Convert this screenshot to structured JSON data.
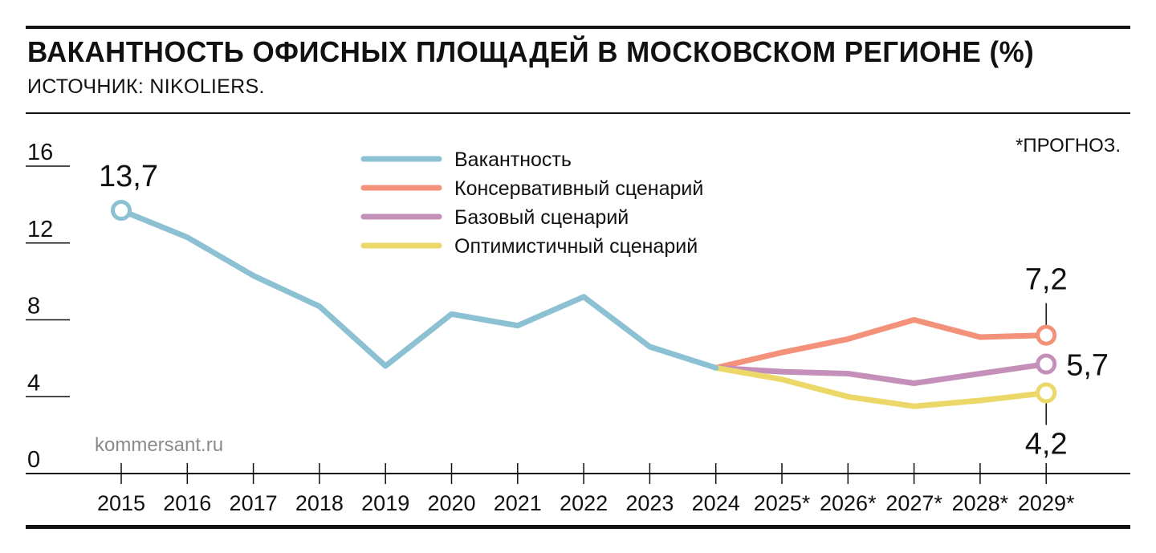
{
  "header": {
    "title": "ВАКАНТНОСТЬ ОФИСНЫХ ПЛОЩАДЕЙ В МОСКОВСКОМ РЕГИОНЕ (%)",
    "source": "ИСТОЧНИК: NIKOLIERS."
  },
  "forecast_note": "*ПРОГНОЗ.",
  "watermark": "kommersant.ru",
  "colors": {
    "vacancy": "#8cc1d3",
    "conservative": "#f4917a",
    "base": "#c48fb8",
    "optimistic": "#ebd869",
    "ink": "#111111",
    "watermark": "#8a8a8a"
  },
  "chart_data": {
    "type": "line",
    "x": [
      "2015",
      "2016",
      "2017",
      "2018",
      "2019",
      "2020",
      "2021",
      "2022",
      "2023",
      "2024",
      "2025*",
      "2026*",
      "2027*",
      "2028*",
      "2029*"
    ],
    "ylim": [
      0,
      16
    ],
    "yticks": [
      "0",
      "4",
      "8",
      "12",
      "16"
    ],
    "grid": false,
    "legend_position": "top-center",
    "series": [
      {
        "name": "Вакантность",
        "color_key": "vacancy",
        "values": [
          13.7,
          12.3,
          10.3,
          8.7,
          5.6,
          8.3,
          7.7,
          9.2,
          6.6,
          5.5,
          null,
          null,
          null,
          null,
          null
        ]
      },
      {
        "name": "Консервативный сценарий",
        "color_key": "conservative",
        "values": [
          null,
          null,
          null,
          null,
          null,
          null,
          null,
          null,
          null,
          5.5,
          6.3,
          7.0,
          8.0,
          7.1,
          7.2
        ]
      },
      {
        "name": "Базовый сценарий",
        "color_key": "base",
        "values": [
          null,
          null,
          null,
          null,
          null,
          null,
          null,
          null,
          null,
          5.5,
          5.3,
          5.2,
          4.7,
          5.2,
          5.7
        ]
      },
      {
        "name": "Оптимистичный сценарий",
        "color_key": "optimistic",
        "values": [
          null,
          null,
          null,
          null,
          null,
          null,
          null,
          null,
          null,
          5.5,
          4.9,
          4.0,
          3.5,
          3.8,
          4.2
        ]
      }
    ],
    "annotations": [
      {
        "text": "13,7",
        "series": 0,
        "index": 0,
        "marker": true
      },
      {
        "text": "7,2",
        "series": 1,
        "index": 14,
        "marker": true
      },
      {
        "text": "5,7",
        "series": 2,
        "index": 14,
        "marker": true
      },
      {
        "text": "4,2",
        "series": 3,
        "index": 14,
        "marker": true
      }
    ]
  }
}
